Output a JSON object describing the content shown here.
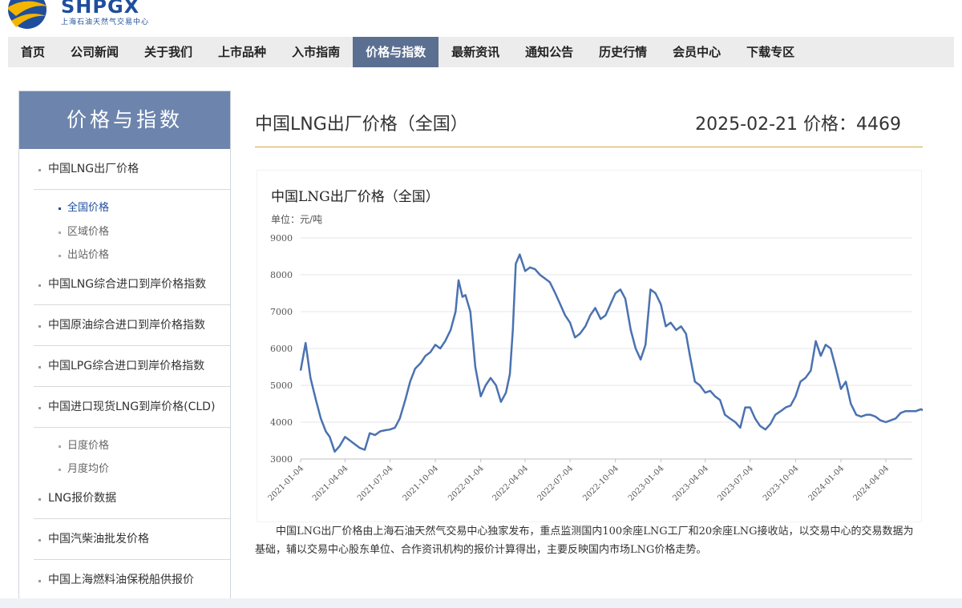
{
  "logo": {
    "brand": "SHPGX",
    "subtitle": "上海石油天然气交易中心",
    "colors": {
      "blue": "#1f4e9c",
      "yellow": "#f4b400"
    }
  },
  "nav": {
    "items": [
      {
        "label": "首页"
      },
      {
        "label": "公司新闻"
      },
      {
        "label": "关于我们"
      },
      {
        "label": "上市品种"
      },
      {
        "label": "入市指南"
      },
      {
        "label": "价格与指数",
        "active": true
      },
      {
        "label": "最新资讯"
      },
      {
        "label": "通知公告"
      },
      {
        "label": "历史行情"
      },
      {
        "label": "会员中心"
      },
      {
        "label": "下载专区"
      }
    ]
  },
  "sidebar": {
    "title": "价格与指数",
    "items": [
      {
        "label": "中国LNG出厂价格",
        "sub": [
          {
            "label": "全国价格",
            "active": true
          },
          {
            "label": "区域价格"
          },
          {
            "label": "出站价格"
          }
        ]
      },
      {
        "label": "中国LNG综合进口到岸价格指数"
      },
      {
        "label": "中国原油综合进口到岸价格指数"
      },
      {
        "label": "中国LPG综合进口到岸价格指数"
      },
      {
        "label": "中国进口现货LNG到岸价格(CLD)",
        "sub": [
          {
            "label": "日度价格"
          },
          {
            "label": "月度均价"
          }
        ]
      },
      {
        "label": "LNG报价数据"
      },
      {
        "label": "中国汽柴油批发价格"
      },
      {
        "label": "中国上海燃料油保税船供报价"
      }
    ]
  },
  "main": {
    "title": "中国LNG出厂价格（全国）",
    "price_line": "2025-02-21 价格：4469",
    "description": "中国LNG出厂价格由上海石油天然气交易中心独家发布，重点监测国内100余座LNG工厂和20余座LNG接收站，以交易中心的交易数据为基础，辅以交易中心股东单位、合作资讯机构的报价计算得出，主要反映国内市场LNG价格走势。"
  },
  "chart_data": {
    "type": "line",
    "title": "中国LNG出厂价格（全国）",
    "unit_label": "单位：元/吨",
    "ylim": [
      3000,
      9000
    ],
    "yticks": [
      "9000",
      "8000",
      "7000",
      "6000",
      "5000",
      "4000",
      "3000"
    ],
    "xticks": [
      "2021-01-04",
      "2021-04-04",
      "2021-07-04",
      "2021-10-04",
      "2022-01-04",
      "2022-04-04",
      "2022-07-04",
      "2022-10-04",
      "2023-01-04",
      "2023-04-04",
      "2023-07-04",
      "2023-10-04",
      "2024-01-04",
      "2024-04-04"
    ],
    "grid": true,
    "line_color": "#4a72b0",
    "series": [
      {
        "x": [
          "2021-01-04",
          "2021-01-14",
          "2021-01-24",
          "2021-02-04",
          "2021-02-14",
          "2021-02-24",
          "2021-03-04",
          "2021-03-14",
          "2021-03-24",
          "2021-04-04",
          "2021-04-14",
          "2021-04-24",
          "2021-05-04",
          "2021-05-14",
          "2021-05-24",
          "2021-06-04",
          "2021-06-14",
          "2021-06-24",
          "2021-07-04",
          "2021-07-14",
          "2021-07-24",
          "2021-08-04",
          "2021-08-14",
          "2021-08-24",
          "2021-09-04",
          "2021-09-14",
          "2021-09-24",
          "2021-10-04",
          "2021-10-14",
          "2021-10-24",
          "2021-11-04",
          "2021-11-14",
          "2021-11-20",
          "2021-11-28",
          "2021-12-04",
          "2021-12-14",
          "2021-12-24",
          "2022-01-04",
          "2022-01-14",
          "2022-01-24",
          "2022-02-04",
          "2022-02-14",
          "2022-02-24",
          "2022-03-04",
          "2022-03-10",
          "2022-03-16",
          "2022-03-24",
          "2022-04-04",
          "2022-04-14",
          "2022-04-24",
          "2022-05-04",
          "2022-05-14",
          "2022-05-24",
          "2022-06-04",
          "2022-06-14",
          "2022-06-24",
          "2022-07-04",
          "2022-07-14",
          "2022-07-24",
          "2022-08-04",
          "2022-08-14",
          "2022-08-24",
          "2022-09-04",
          "2022-09-14",
          "2022-09-24",
          "2022-10-04",
          "2022-10-14",
          "2022-10-24",
          "2022-11-04",
          "2022-11-14",
          "2022-11-24",
          "2022-12-04",
          "2022-12-14",
          "2022-12-24",
          "2023-01-04",
          "2023-01-14",
          "2023-01-24",
          "2023-02-04",
          "2023-02-14",
          "2023-02-24",
          "2023-03-04",
          "2023-03-14",
          "2023-03-24",
          "2023-04-04",
          "2023-04-14",
          "2023-04-24",
          "2023-05-04",
          "2023-05-14",
          "2023-05-24",
          "2023-06-04",
          "2023-06-14",
          "2023-06-24",
          "2023-07-04",
          "2023-07-14",
          "2023-07-24",
          "2023-08-04",
          "2023-08-14",
          "2023-08-24",
          "2023-09-04",
          "2023-09-14",
          "2023-09-24",
          "2023-10-04",
          "2023-10-14",
          "2023-10-24",
          "2023-11-04",
          "2023-11-14",
          "2023-11-24",
          "2023-12-04",
          "2023-12-14",
          "2023-12-24",
          "2024-01-04",
          "2024-01-14",
          "2024-01-24",
          "2024-02-04",
          "2024-02-14",
          "2024-02-24",
          "2024-03-04",
          "2024-03-14",
          "2024-03-24",
          "2024-04-04",
          "2024-04-14",
          "2024-04-24",
          "2024-05-04",
          "2024-05-14",
          "2024-05-24",
          "2024-06-04",
          "2024-06-14",
          "2024-06-24"
        ],
        "values": [
          5400,
          6150,
          5200,
          4600,
          4100,
          3750,
          3600,
          3200,
          3350,
          3600,
          3500,
          3400,
          3300,
          3250,
          3700,
          3650,
          3750,
          3780,
          3800,
          3850,
          4100,
          4600,
          5100,
          5450,
          5600,
          5800,
          5900,
          6100,
          6000,
          6200,
          6500,
          7000,
          7850,
          7400,
          7450,
          7000,
          5500,
          4700,
          5000,
          5200,
          5000,
          4550,
          4800,
          5300,
          6500,
          8300,
          8550,
          8100,
          8200,
          8150,
          8000,
          7900,
          7800,
          7500,
          7200,
          6900,
          6700,
          6300,
          6400,
          6600,
          6900,
          7100,
          6800,
          6900,
          7200,
          7500,
          7600,
          7350,
          6500,
          6000,
          5700,
          6100,
          7600,
          7500,
          7200,
          6600,
          6700,
          6500,
          6600,
          6400,
          5800,
          5100,
          5000,
          4800,
          4850,
          4700,
          4600,
          4200,
          4100,
          4000,
          3850,
          4400,
          4400,
          4100,
          3900,
          3800,
          3950,
          4200,
          4300,
          4400,
          4450,
          4700,
          5100,
          5200,
          5400,
          6200,
          5800,
          6100,
          6000,
          5500,
          4900,
          5100,
          4500,
          4200,
          4150,
          4200,
          4200,
          4150,
          4050,
          4000,
          4050,
          4100,
          4250,
          4300,
          4300,
          4300,
          4350,
          4300
        ]
      }
    ]
  }
}
